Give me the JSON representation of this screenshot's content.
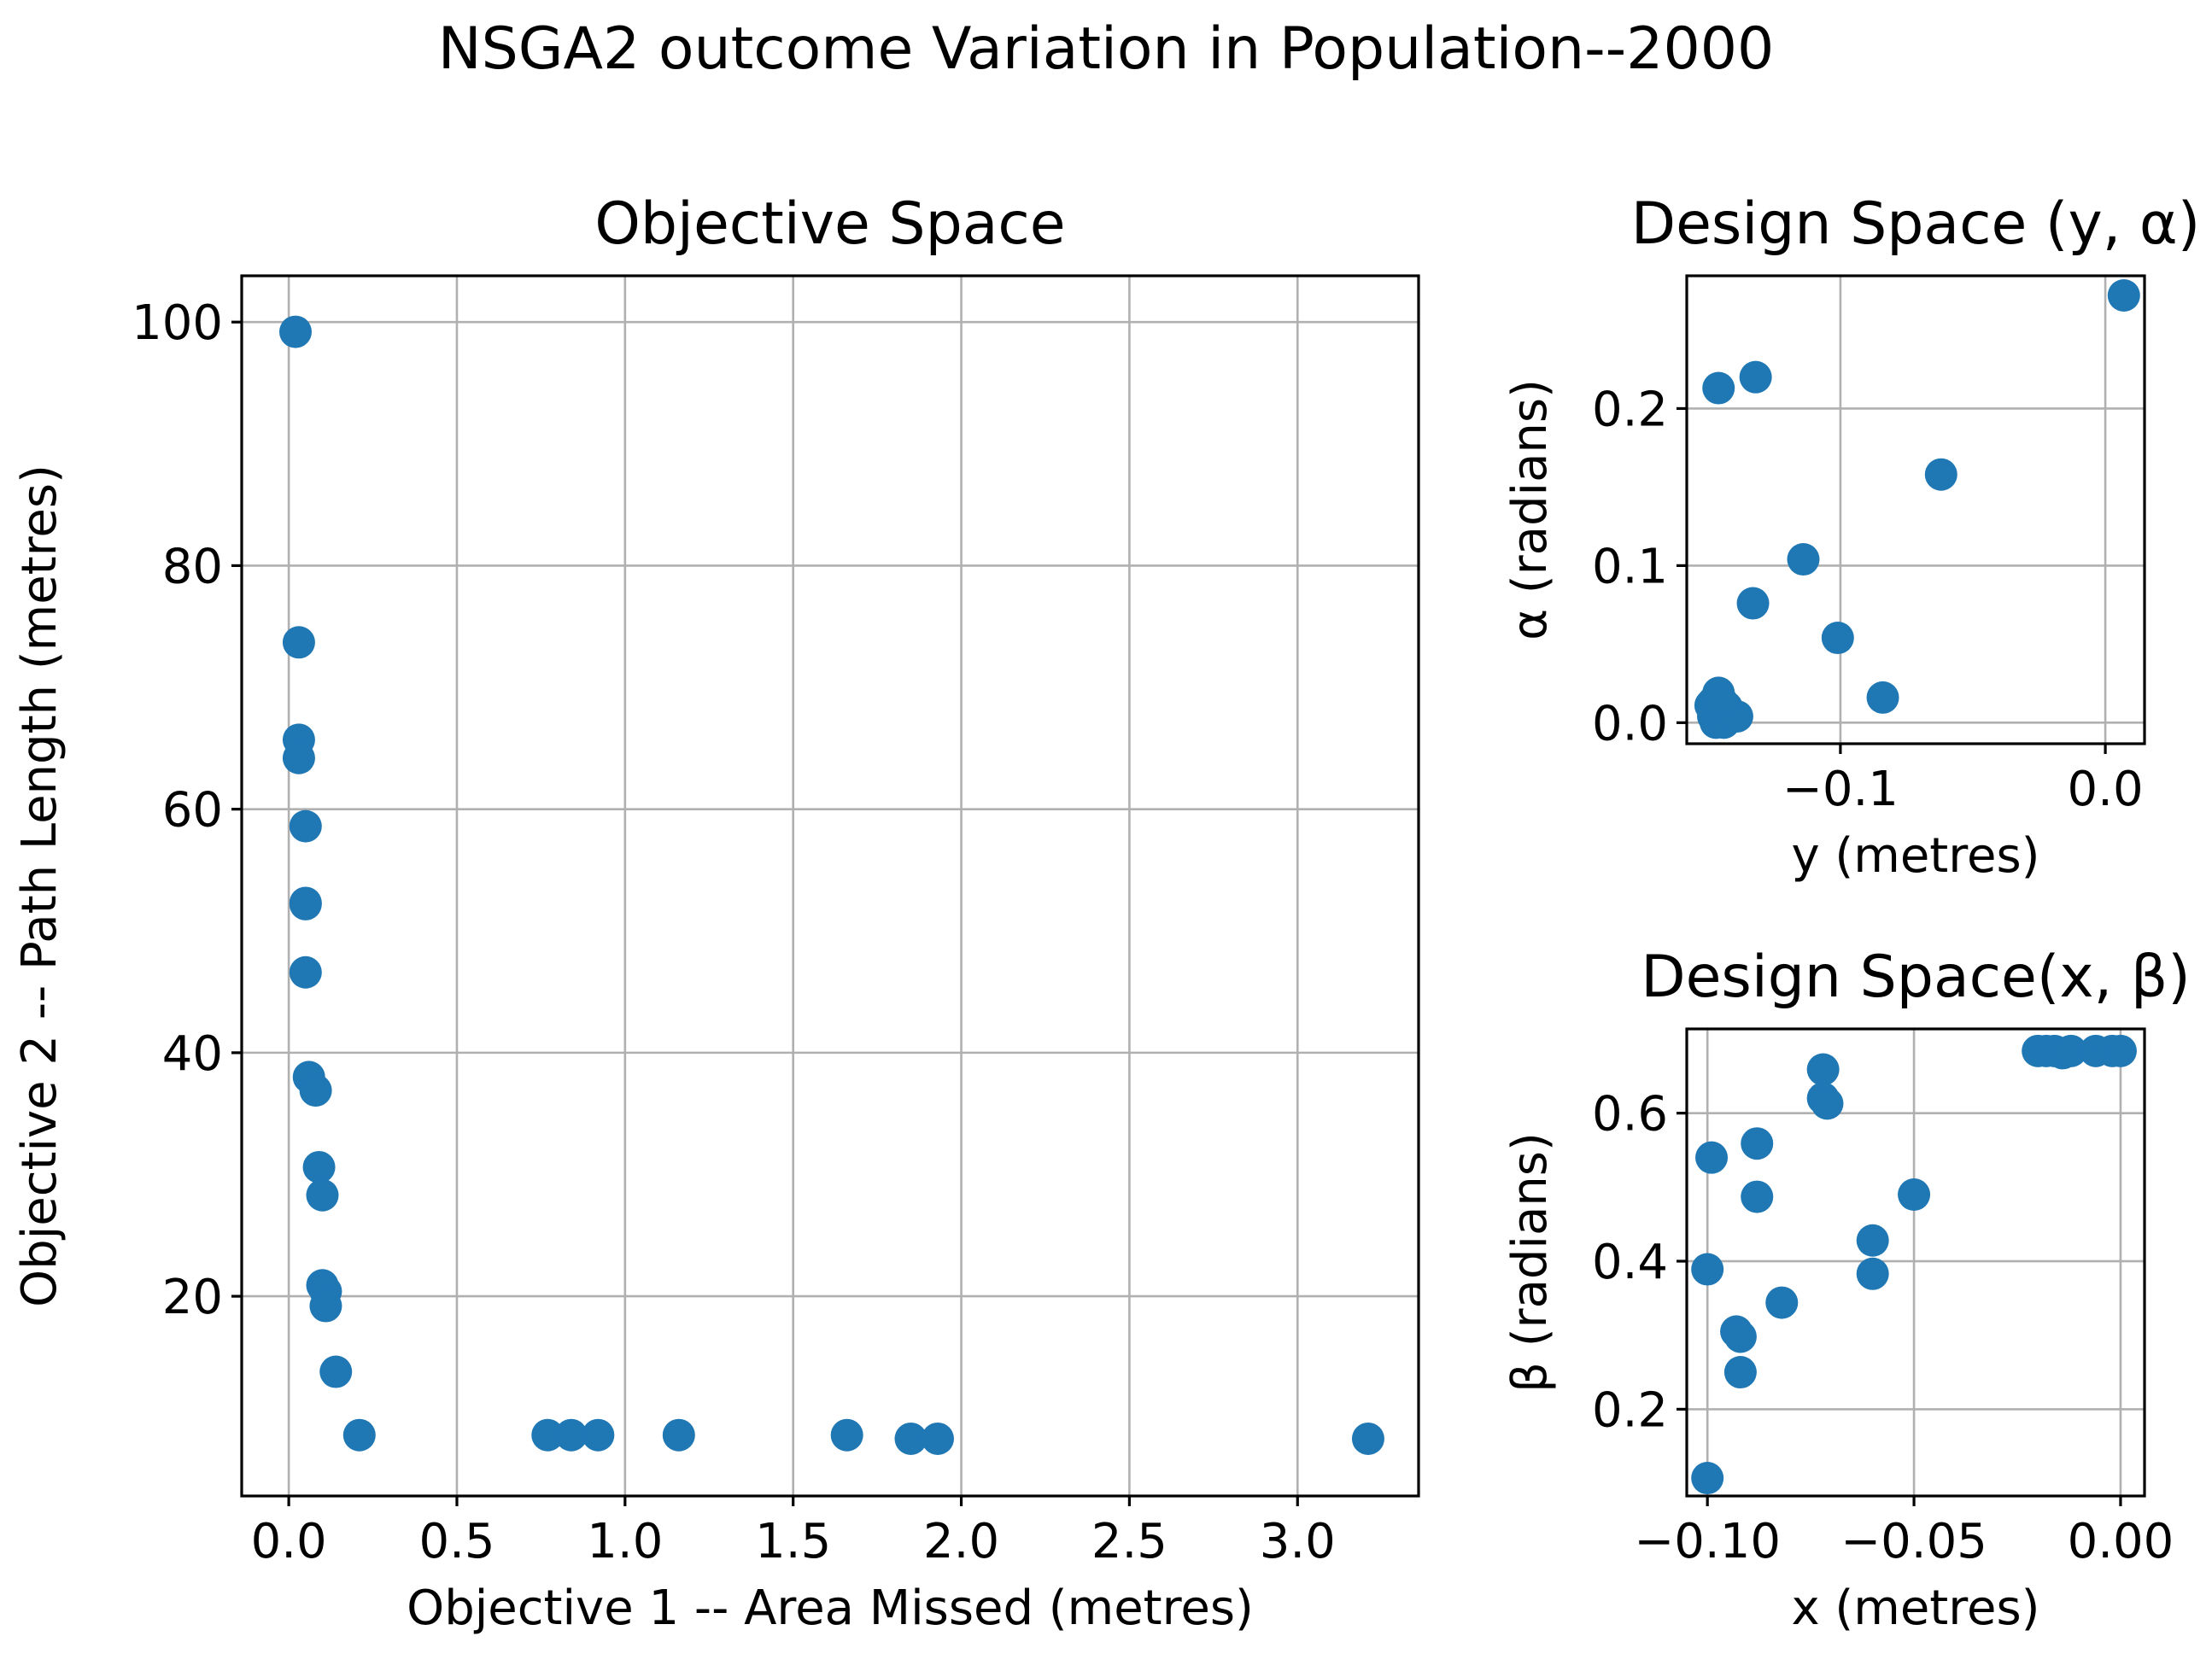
{
  "figure": {
    "suptitle": "NSGA2 outcome Variation in Population--2000"
  },
  "chart_data": [
    {
      "type": "scatter",
      "title": "Objective Space",
      "xlabel": "Objective 1 -- Area Missed (metres)",
      "ylabel": "Objective 2 -- Path Length (metres)",
      "xlim": [
        -0.14,
        3.36
      ],
      "ylim": [
        3.6,
        103.8
      ],
      "xticks": [
        0.0,
        0.5,
        1.0,
        1.5,
        2.0,
        2.5,
        3.0
      ],
      "xtick_labels": [
        "0.0",
        "0.5",
        "1.0",
        "1.5",
        "2.0",
        "2.5",
        "3.0"
      ],
      "yticks": [
        20,
        40,
        60,
        80,
        100
      ],
      "ytick_labels": [
        "20",
        "40",
        "60",
        "80",
        "100"
      ],
      "grid": true,
      "color": "#1f77b4",
      "points": [
        {
          "x": 0.02,
          "y": 99.2
        },
        {
          "x": 0.03,
          "y": 73.7
        },
        {
          "x": 0.03,
          "y": 65.7
        },
        {
          "x": 0.03,
          "y": 64.2
        },
        {
          "x": 0.05,
          "y": 58.6
        },
        {
          "x": 0.05,
          "y": 52.3
        },
        {
          "x": 0.05,
          "y": 52.2
        },
        {
          "x": 0.05,
          "y": 46.6
        },
        {
          "x": 0.06,
          "y": 38.0
        },
        {
          "x": 0.08,
          "y": 36.9
        },
        {
          "x": 0.09,
          "y": 30.6
        },
        {
          "x": 0.1,
          "y": 28.3
        },
        {
          "x": 0.1,
          "y": 20.9
        },
        {
          "x": 0.11,
          "y": 20.4
        },
        {
          "x": 0.11,
          "y": 19.2
        },
        {
          "x": 0.14,
          "y": 13.8
        },
        {
          "x": 0.21,
          "y": 8.6
        },
        {
          "x": 0.77,
          "y": 8.6
        },
        {
          "x": 0.84,
          "y": 8.6
        },
        {
          "x": 0.92,
          "y": 8.6
        },
        {
          "x": 1.16,
          "y": 8.6
        },
        {
          "x": 1.66,
          "y": 8.6
        },
        {
          "x": 1.85,
          "y": 8.3
        },
        {
          "x": 1.93,
          "y": 8.3
        },
        {
          "x": 3.21,
          "y": 8.3
        }
      ]
    },
    {
      "type": "scatter",
      "title": "Design Space (y, α)",
      "xlabel": "y (metres)",
      "ylabel": "α (radians)",
      "xlim": [
        -0.158,
        0.0148
      ],
      "ylim": [
        -0.0134,
        0.2845
      ],
      "xticks": [
        -0.1,
        0.0
      ],
      "xtick_labels": [
        "−0.1",
        "0.0"
      ],
      "yticks": [
        0.0,
        0.1,
        0.2
      ],
      "ytick_labels": [
        "0.0",
        "0.1",
        "0.2"
      ],
      "grid": true,
      "color": "#1f77b4",
      "points": [
        {
          "x": 0.007,
          "y": 0.272
        },
        {
          "x": -0.146,
          "y": 0.213
        },
        {
          "x": -0.132,
          "y": 0.22
        },
        {
          "x": -0.062,
          "y": 0.158
        },
        {
          "x": -0.114,
          "y": 0.104
        },
        {
          "x": -0.133,
          "y": 0.076
        },
        {
          "x": -0.101,
          "y": 0.054
        },
        {
          "x": -0.084,
          "y": 0.016
        },
        {
          "x": -0.146,
          "y": 0.019
        },
        {
          "x": -0.149,
          "y": 0.011
        },
        {
          "x": -0.146,
          "y": 0.007
        },
        {
          "x": -0.143,
          "y": 0.01
        },
        {
          "x": -0.148,
          "y": 0.004
        },
        {
          "x": -0.145,
          "y": 0.002
        },
        {
          "x": -0.141,
          "y": 0.005
        },
        {
          "x": -0.147,
          "y": 0.0
        },
        {
          "x": -0.144,
          "y": 0.0
        },
        {
          "x": -0.139,
          "y": 0.004
        },
        {
          "x": -0.148,
          "y": 0.013
        },
        {
          "x": -0.145,
          "y": 0.014
        }
      ]
    },
    {
      "type": "scatter",
      "title": "Design Space(x, β)",
      "xlabel": "x (metres)",
      "ylabel": "β (radians)",
      "xlim": [
        -0.105,
        0.0058
      ],
      "ylim": [
        0.0828,
        0.7138
      ],
      "xticks": [
        -0.1,
        -0.05,
        0.0
      ],
      "xtick_labels": [
        "−0.10",
        "−0.05",
        "0.00"
      ],
      "yticks": [
        0.2,
        0.4,
        0.6
      ],
      "ytick_labels": [
        "0.2",
        "0.4",
        "0.6"
      ],
      "grid": true,
      "color": "#1f77b4",
      "points": [
        {
          "x": -0.02,
          "y": 0.684
        },
        {
          "x": -0.018,
          "y": 0.684
        },
        {
          "x": -0.016,
          "y": 0.684
        },
        {
          "x": -0.014,
          "y": 0.681
        },
        {
          "x": -0.012,
          "y": 0.684
        },
        {
          "x": -0.006,
          "y": 0.684
        },
        {
          "x": -0.002,
          "y": 0.684
        },
        {
          "x": 0.0,
          "y": 0.684
        },
        {
          "x": -0.072,
          "y": 0.659
        },
        {
          "x": -0.072,
          "y": 0.62
        },
        {
          "x": -0.071,
          "y": 0.613
        },
        {
          "x": -0.099,
          "y": 0.54
        },
        {
          "x": -0.088,
          "y": 0.559
        },
        {
          "x": -0.088,
          "y": 0.487
        },
        {
          "x": -0.05,
          "y": 0.49
        },
        {
          "x": -0.06,
          "y": 0.428
        },
        {
          "x": -0.06,
          "y": 0.383
        },
        {
          "x": -0.1,
          "y": 0.389
        },
        {
          "x": -0.082,
          "y": 0.344
        },
        {
          "x": -0.093,
          "y": 0.305
        },
        {
          "x": -0.092,
          "y": 0.298
        },
        {
          "x": -0.092,
          "y": 0.25
        },
        {
          "x": -0.1,
          "y": 0.107
        }
      ]
    }
  ]
}
